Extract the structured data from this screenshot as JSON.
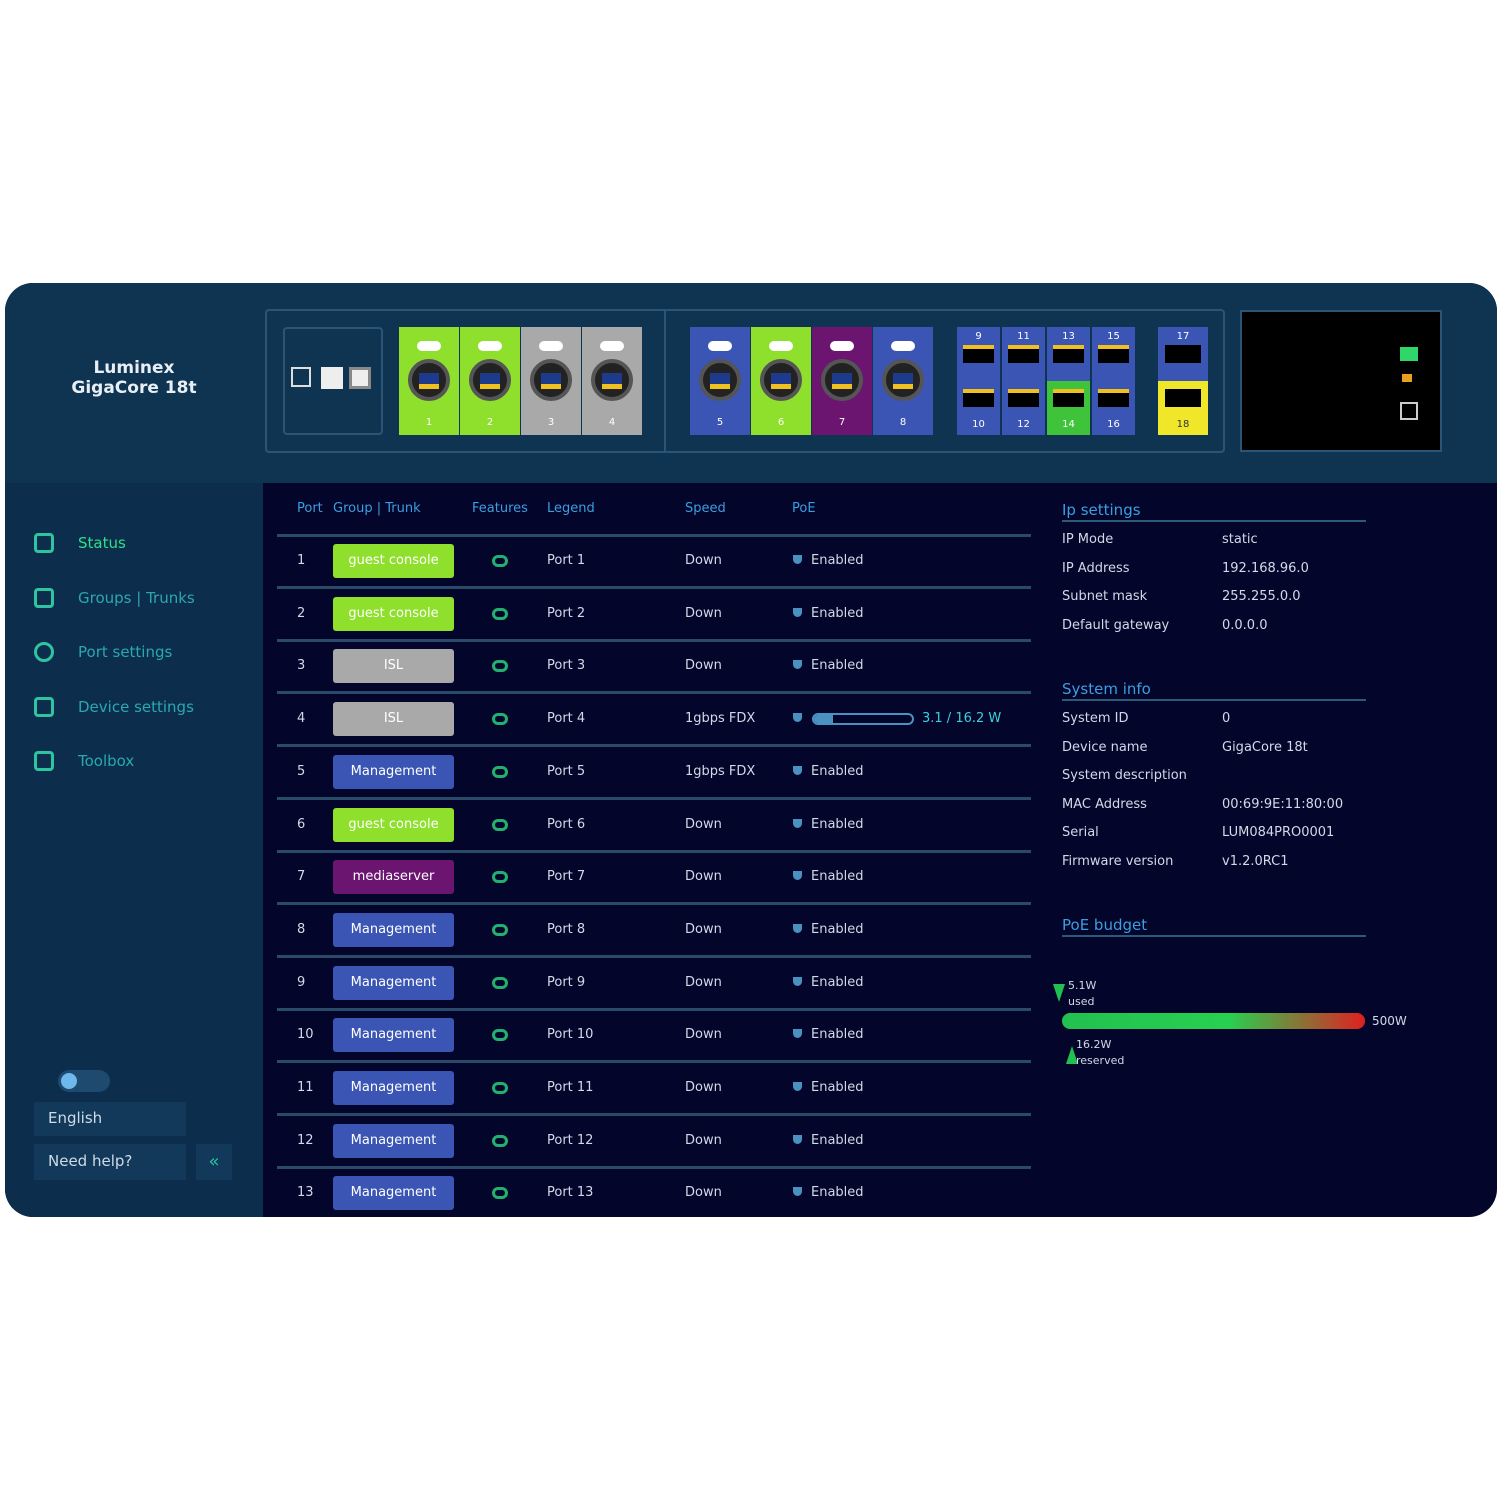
{
  "header": {
    "brand": "Luminex",
    "model": "GigaCore 18t"
  },
  "front_panel": {
    "ports": [
      {
        "label": "1",
        "color": "#8ee02c"
      },
      {
        "label": "2",
        "color": "#8ee02c"
      },
      {
        "label": "3",
        "color": "#a9a9a9"
      },
      {
        "label": "4",
        "color": "#a9a9a9"
      },
      {
        "label": "5",
        "color": "#3a55b3"
      },
      {
        "label": "6",
        "color": "#8ee02c"
      },
      {
        "label": "7",
        "color": "#6b1571"
      },
      {
        "label": "8",
        "color": "#3a55b3"
      }
    ],
    "sfp_ports": [
      {
        "label": "9",
        "color": "#3a55b3"
      },
      {
        "label": "10",
        "color": "#3a55b3"
      },
      {
        "label": "11",
        "color": "#3a55b3"
      },
      {
        "label": "12",
        "color": "#3a55b3"
      },
      {
        "label": "13",
        "color": "#3a55b3"
      },
      {
        "label": "14",
        "color": "#3ec33a"
      },
      {
        "label": "15",
        "color": "#3a55b3"
      },
      {
        "label": "16",
        "color": "#3a55b3"
      }
    ],
    "uplinks": [
      {
        "label": "17",
        "color": "#3a55b3"
      },
      {
        "label": "18",
        "color": "#f0e62a"
      }
    ]
  },
  "nav": [
    "Status",
    "Groups | Trunks",
    "Port settings",
    "Device settings",
    "Toolbox"
  ],
  "language": "English",
  "help": "Need help?",
  "table": {
    "columns": [
      "Port",
      "Group | Trunk",
      "Features",
      "Legend",
      "Speed",
      "PoE"
    ],
    "rows": [
      {
        "port": "1",
        "group": "guest console",
        "group_color": "#8ee02c",
        "legend": "Port 1",
        "speed": "Down",
        "poe": "Enabled"
      },
      {
        "port": "2",
        "group": "guest console",
        "group_color": "#8ee02c",
        "legend": "Port 2",
        "speed": "Down",
        "poe": "Enabled"
      },
      {
        "port": "3",
        "group": "ISL",
        "group_color": "#a9a9a9",
        "legend": "Port 3",
        "speed": "Down",
        "poe": "Enabled"
      },
      {
        "port": "4",
        "group": "ISL",
        "group_color": "#a9a9a9",
        "legend": "Port 4",
        "speed": "1gbps FDX",
        "poe": {
          "used": 3.1,
          "max": 16.2,
          "label": "3.1 / 16.2 W"
        }
      },
      {
        "port": "5",
        "group": "Management",
        "group_color": "#3a55b3",
        "legend": "Port 5",
        "speed": "1gbps FDX",
        "poe": "Enabled"
      },
      {
        "port": "6",
        "group": "guest console",
        "group_color": "#8ee02c",
        "legend": "Port 6",
        "speed": "Down",
        "poe": "Enabled"
      },
      {
        "port": "7",
        "group": "mediaserver",
        "group_color": "#6b1571",
        "legend": "Port 7",
        "speed": "Down",
        "poe": "Enabled"
      },
      {
        "port": "8",
        "group": "Management",
        "group_color": "#3a55b3",
        "legend": "Port 8",
        "speed": "Down",
        "poe": "Enabled"
      },
      {
        "port": "9",
        "group": "Management",
        "group_color": "#3a55b3",
        "legend": "Port 9",
        "speed": "Down",
        "poe": "Enabled"
      },
      {
        "port": "10",
        "group": "Management",
        "group_color": "#3a55b3",
        "legend": "Port 10",
        "speed": "Down",
        "poe": "Enabled"
      },
      {
        "port": "11",
        "group": "Management",
        "group_color": "#3a55b3",
        "legend": "Port 11",
        "speed": "Down",
        "poe": "Enabled"
      },
      {
        "port": "12",
        "group": "Management",
        "group_color": "#3a55b3",
        "legend": "Port 12",
        "speed": "Down",
        "poe": "Enabled"
      },
      {
        "port": "13",
        "group": "Management",
        "group_color": "#3a55b3",
        "legend": "Port 13",
        "speed": "Down",
        "poe": "Enabled"
      }
    ]
  },
  "ip_settings": {
    "title": "Ip settings",
    "rows": [
      [
        "IP Mode",
        "static"
      ],
      [
        "IP Address",
        "192.168.96.0"
      ],
      [
        "Subnet mask",
        "255.255.0.0"
      ],
      [
        "Default gateway",
        "0.0.0.0"
      ]
    ]
  },
  "system_info": {
    "title": "System info",
    "rows": [
      [
        "System ID",
        "0"
      ],
      [
        "Device name",
        "GigaCore 18t"
      ],
      [
        "System description"
      ],
      [
        "MAC Address",
        "00:69:9E:11:80:00"
      ],
      [
        "Serial",
        "LUM084PRO0001"
      ],
      [
        "Firmware version",
        "v1.2.0RC1"
      ]
    ]
  },
  "poe_budget": {
    "title": "PoE budget",
    "used": 5.1,
    "used_label": "5.1W",
    "used_caption": "used",
    "reserved": 16.2,
    "reserved_label": "16.2W",
    "reserved_caption": "reserved",
    "total": 500,
    "total_label": "500W"
  }
}
